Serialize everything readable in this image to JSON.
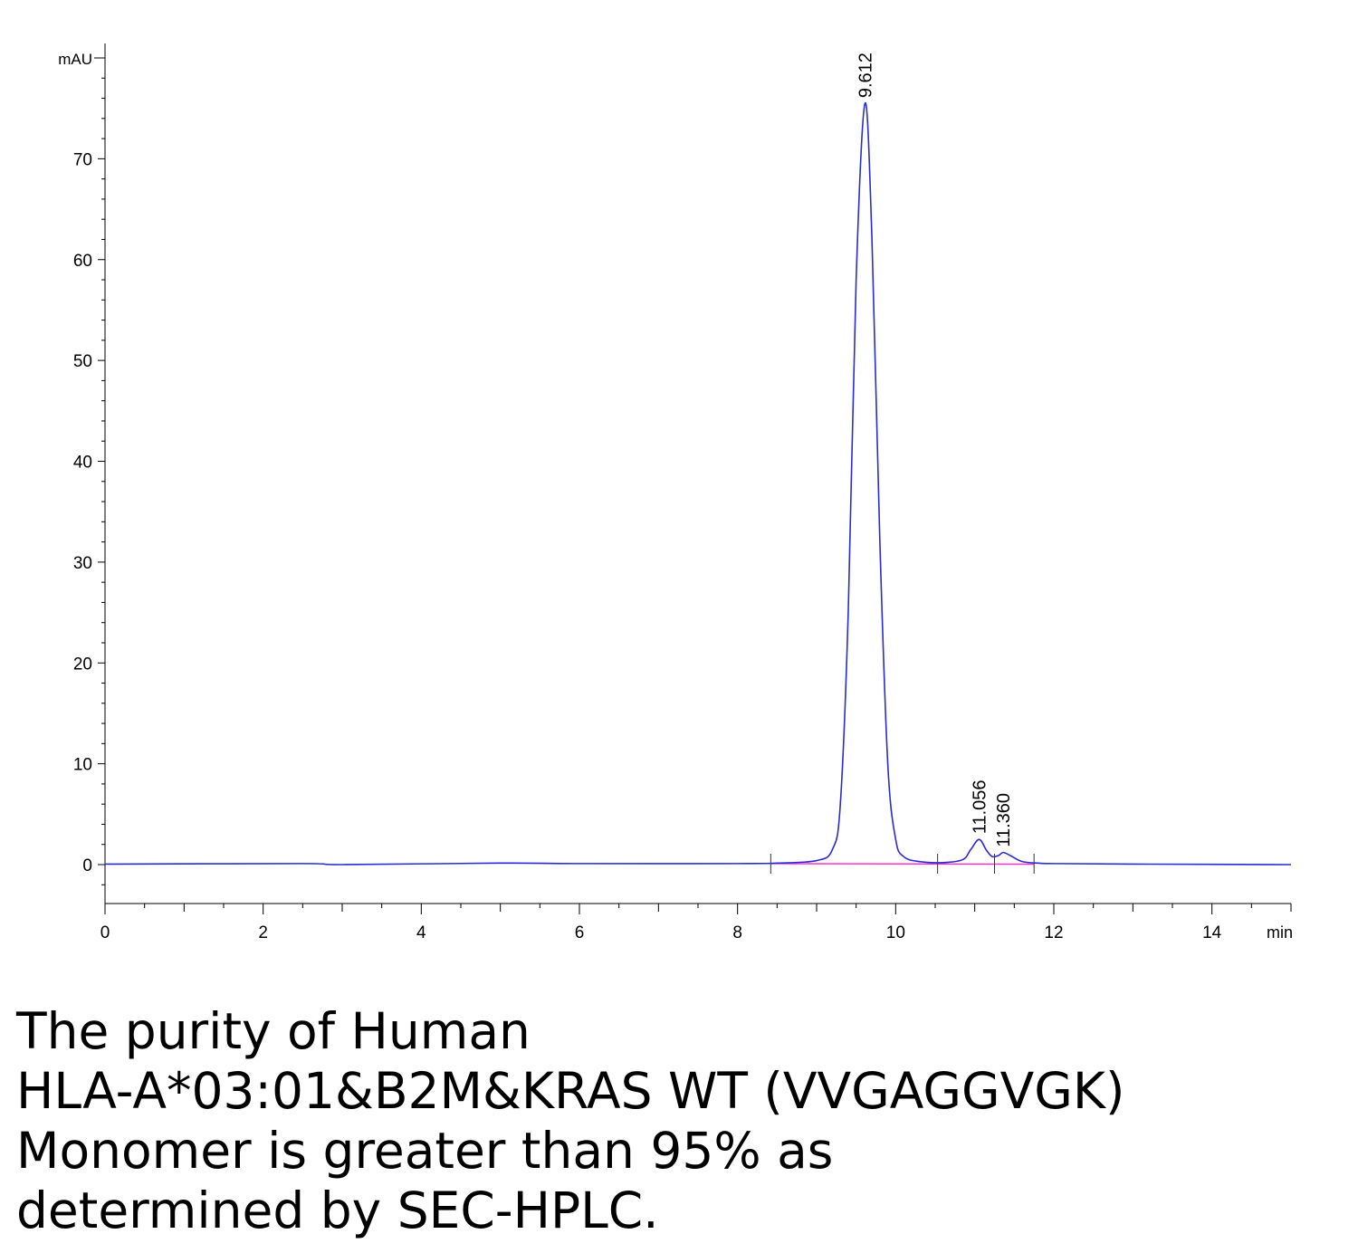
{
  "chart_data": {
    "type": "line",
    "title": "",
    "xlabel": "",
    "ylabel": "",
    "x_unit_label": "min",
    "y_unit_label": "mAU",
    "xlim": [
      0,
      15
    ],
    "ylim": [
      -4,
      80
    ],
    "x_ticks": [
      0,
      2,
      4,
      6,
      8,
      10,
      12,
      14
    ],
    "x_tick_labels": [
      "0",
      "2",
      "4",
      "6",
      "8",
      "10",
      "12",
      "14"
    ],
    "y_ticks": [
      0,
      10,
      20,
      30,
      40,
      50,
      60,
      70
    ],
    "y_tick_labels": [
      "0",
      "10",
      "20",
      "30",
      "40",
      "50",
      "60",
      "70"
    ],
    "grid": false,
    "legend": "none",
    "series": [
      {
        "color": "#2b2bd6",
        "peaks": [
          {
            "rt": 9.612,
            "height": 75.5
          },
          {
            "rt": 11.056,
            "height": 2.5
          },
          {
            "rt": 11.36,
            "height": 1.2
          }
        ],
        "points": [
          [
            0,
            0.05
          ],
          [
            2.5,
            0.1
          ],
          [
            3.0,
            0.0
          ],
          [
            5.0,
            0.15
          ],
          [
            6.0,
            0.1
          ],
          [
            8.0,
            0.1
          ],
          [
            8.5,
            0.15
          ],
          [
            9.0,
            0.4
          ],
          [
            9.2,
            1.5
          ],
          [
            9.3,
            6.0
          ],
          [
            9.4,
            25.0
          ],
          [
            9.5,
            58.0
          ],
          [
            9.612,
            75.5
          ],
          [
            9.7,
            62.0
          ],
          [
            9.8,
            32.0
          ],
          [
            9.9,
            10.0
          ],
          [
            10.0,
            2.5
          ],
          [
            10.1,
            0.8
          ],
          [
            10.3,
            0.3
          ],
          [
            10.6,
            0.2
          ],
          [
            10.85,
            0.5
          ],
          [
            10.95,
            1.5
          ],
          [
            11.056,
            2.5
          ],
          [
            11.15,
            1.4
          ],
          [
            11.22,
            0.8
          ],
          [
            11.3,
            0.9
          ],
          [
            11.36,
            1.2
          ],
          [
            11.45,
            0.9
          ],
          [
            11.6,
            0.3
          ],
          [
            11.8,
            0.15
          ],
          [
            12.0,
            0.1
          ],
          [
            13.0,
            0.05
          ],
          [
            15.0,
            0.0
          ]
        ]
      }
    ],
    "baseline": {
      "color": "#ff33cc",
      "x": [
        8.42,
        11.75
      ],
      "y": [
        0.1,
        0.05
      ]
    },
    "integration_marks": [
      8.42,
      10.53,
      11.25,
      11.75
    ],
    "annotations": [
      {
        "text": "9.612",
        "x": 9.612
      },
      {
        "text": "11.056",
        "x": 11.056
      },
      {
        "text": "11.360",
        "x": 11.36
      }
    ]
  },
  "caption": {
    "lines": [
      "The purity of Human",
      "HLA-A*03:01&B2M&KRAS WT (VVGAGGVGK)",
      "Monomer is greater than 95% as",
      "determined by SEC-HPLC."
    ]
  }
}
